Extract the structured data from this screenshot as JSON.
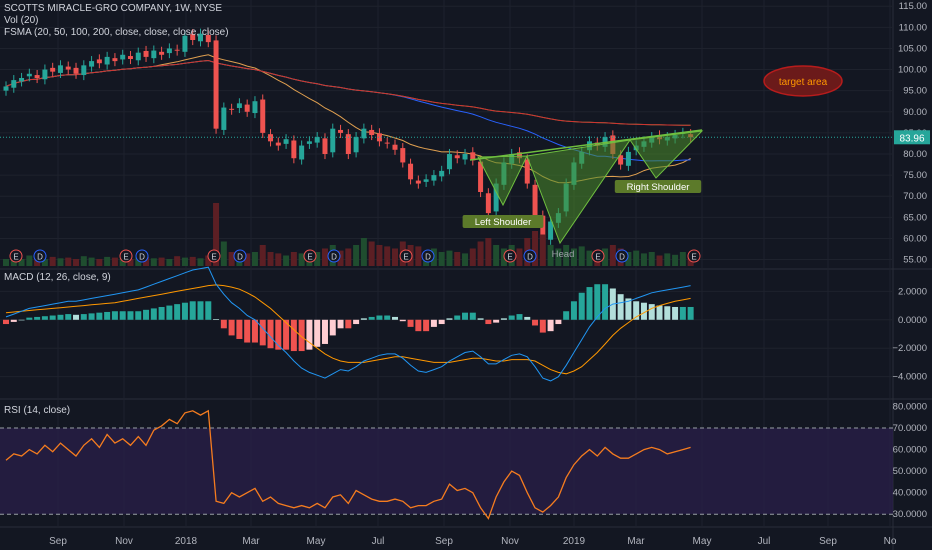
{
  "header": {
    "title": "SCOTTS MIRACLE-GRO COMPANY, 1W, NYSE",
    "vol_legend": "Vol (20)",
    "fsma_legend": "FSMA (20, 50, 100, 200, close, close, close, close)"
  },
  "macd_panel": {
    "legend": "MACD (12, 26, close, 9)"
  },
  "rsi_panel": {
    "legend": "RSI (14, close)"
  },
  "annotations": {
    "left_shoulder": "Left Shoulder",
    "head": "Head",
    "right_shoulder": "Right Shoulder",
    "target": "target area"
  },
  "price_badge": "83.96",
  "colors": {
    "background": "#131722",
    "up": "#26a69a",
    "down": "#ef5350",
    "pattern_fill": "#4a8c2a",
    "ma20": "#e0a050",
    "ma50": "#2962ff",
    "ma100": "#4caf50",
    "ma200": "#d32f2f",
    "rsi_line": "#f57c1f",
    "rsi_band": "#2a1f4a",
    "macd_line": "#2196f3",
    "signal_line": "#ff9800",
    "target_fill": "#6b1a1a",
    "target_text": "#ff9800",
    "price_badge": "#26a69a"
  },
  "chart_data": [
    {
      "type": "candlestick",
      "panel": "price",
      "title": "SCOTTS MIRACLE-GRO COMPANY, 1W, NYSE",
      "x_tick_labels": [
        "Sep",
        "Nov",
        "2018",
        "Mar",
        "May",
        "Jul",
        "Sep",
        "Nov",
        "2019",
        "Mar",
        "May",
        "Jul",
        "Sep",
        "No"
      ],
      "y_ticks": [
        55,
        60,
        65,
        70,
        75,
        80,
        85,
        90,
        95,
        100,
        105,
        110,
        115
      ],
      "y_tick_labels": [
        "55.00",
        "60.00",
        "65.00",
        "70.00",
        "75.00",
        "80.00",
        "85.00",
        "90.00",
        "95.00",
        "100.00",
        "105.00",
        "110.00",
        "115.00"
      ],
      "ylim": [
        53,
        116
      ],
      "weeks": 89,
      "closes": [
        96,
        97.5,
        98,
        99,
        98,
        100,
        99.5,
        101,
        100,
        99,
        101,
        102,
        101.5,
        103,
        102,
        103.5,
        102.5,
        104,
        103,
        104.5,
        103.5,
        105,
        104.5,
        108,
        107,
        108.5,
        106.5,
        86,
        91,
        90.5,
        92,
        90,
        92.5,
        85,
        83,
        82,
        83.5,
        79,
        82,
        83,
        84,
        80,
        86,
        85,
        80,
        84,
        86,
        84.5,
        83,
        82.5,
        81,
        78,
        74,
        73,
        74,
        75,
        76,
        80,
        79,
        80,
        78.5,
        71,
        66,
        73,
        78,
        80,
        79,
        73,
        65,
        60,
        64,
        66,
        73,
        78,
        80.5,
        83,
        82,
        84,
        80,
        77.5,
        80.5,
        82,
        83,
        84,
        83.5,
        84,
        84.5,
        85,
        83.96
      ],
      "last_price": 83.96,
      "moving_averages": [
        {
          "period": 20,
          "color": "#e0a050"
        },
        {
          "period": 50,
          "color": "#2962ff"
        },
        {
          "period": 100,
          "color": "#4caf50"
        },
        {
          "period": 200,
          "color": "#d32f2f"
        }
      ],
      "earnings_marker": "E",
      "dividend_marker": "D",
      "annotations": [
        "Left Shoulder",
        "Head",
        "Right Shoulder",
        "target area"
      ]
    },
    {
      "type": "bar",
      "panel": "volume",
      "title": "Vol (20)",
      "values": [
        0.1,
        0.12,
        0.1,
        0.15,
        0.12,
        0.1,
        0.13,
        0.11,
        0.12,
        0.1,
        0.14,
        0.12,
        0.1,
        0.13,
        0.12,
        0.11,
        0.1,
        0.12,
        0.13,
        0.11,
        0.12,
        0.1,
        0.14,
        0.12,
        0.13,
        0.11,
        0.15,
        0.9,
        0.35,
        0.2,
        0.15,
        0.18,
        0.2,
        0.3,
        0.2,
        0.18,
        0.15,
        0.2,
        0.18,
        0.16,
        0.2,
        0.25,
        0.3,
        0.22,
        0.25,
        0.3,
        0.4,
        0.35,
        0.3,
        0.28,
        0.25,
        0.35,
        0.3,
        0.28,
        0.2,
        0.25,
        0.2,
        0.22,
        0.2,
        0.18,
        0.25,
        0.35,
        0.4,
        0.3,
        0.25,
        0.3,
        0.25,
        0.4,
        0.5,
        0.45,
        0.3,
        0.25,
        0.3,
        0.25,
        0.28,
        0.22,
        0.2,
        0.25,
        0.3,
        0.25,
        0.2,
        0.22,
        0.18,
        0.2,
        0.15,
        0.18,
        0.16,
        0.2,
        0.15
      ]
    },
    {
      "type": "line",
      "panel": "macd",
      "title": "MACD (12, 26, close, 9)",
      "y_ticks": [
        -4,
        -2,
        0,
        2
      ],
      "y_tick_labels": [
        "−4.0000",
        "−2.0000",
        "0.0000",
        "2.0000"
      ],
      "ylim": [
        -5.5,
        3.5
      ],
      "series": [
        {
          "name": "MACD",
          "values": [
            0.2,
            0.4,
            0.6,
            0.8,
            0.9,
            1.0,
            1.1,
            1.2,
            1.3,
            1.3,
            1.4,
            1.5,
            1.6,
            1.7,
            1.8,
            1.9,
            2.0,
            2.1,
            2.3,
            2.5,
            2.7,
            2.9,
            3.1,
            3.3,
            3.5,
            3.6,
            3.7,
            2.5,
            1.8,
            1.2,
            0.8,
            0.3,
            0.0,
            -0.6,
            -1.2,
            -1.8,
            -2.3,
            -2.9,
            -3.4,
            -3.7,
            -3.9,
            -4.1,
            -3.8,
            -3.5,
            -3.6,
            -3.3,
            -2.9,
            -2.7,
            -2.5,
            -2.4,
            -2.4,
            -2.7,
            -3.2,
            -3.6,
            -3.7,
            -3.5,
            -3.3,
            -2.9,
            -2.6,
            -2.3,
            -2.2,
            -2.6,
            -3.1,
            -3.1,
            -2.8,
            -2.5,
            -2.4,
            -2.6,
            -3.3,
            -4.1,
            -4.3,
            -4.0,
            -3.2,
            -2.3,
            -1.4,
            -0.5,
            0.2,
            0.8,
            1.1,
            1.2,
            1.3,
            1.5,
            1.7,
            1.9,
            2.0,
            2.1,
            2.2,
            2.3,
            2.4
          ]
        },
        {
          "name": "Signal",
          "values": [
            0.5,
            0.55,
            0.6,
            0.65,
            0.7,
            0.75,
            0.8,
            0.85,
            0.9,
            0.95,
            1.0,
            1.05,
            1.1,
            1.15,
            1.2,
            1.3,
            1.4,
            1.5,
            1.6,
            1.7,
            1.8,
            1.9,
            2.0,
            2.1,
            2.2,
            2.3,
            2.4,
            2.45,
            2.4,
            2.3,
            2.15,
            1.9,
            1.6,
            1.2,
            0.8,
            0.3,
            -0.2,
            -0.7,
            -1.2,
            -1.6,
            -2.0,
            -2.4,
            -2.7,
            -2.9,
            -3.0,
            -3.0,
            -3.0,
            -2.9,
            -2.8,
            -2.7,
            -2.6,
            -2.6,
            -2.7,
            -2.8,
            -2.9,
            -3.0,
            -3.0,
            -3.0,
            -2.9,
            -2.8,
            -2.7,
            -2.7,
            -2.8,
            -2.9,
            -2.9,
            -2.8,
            -2.8,
            -2.8,
            -2.9,
            -3.2,
            -3.5,
            -3.7,
            -3.8,
            -3.6,
            -3.3,
            -2.8,
            -2.3,
            -1.7,
            -1.1,
            -0.6,
            -0.2,
            0.2,
            0.5,
            0.8,
            1.0,
            1.15,
            1.3,
            1.4,
            1.5
          ]
        }
      ],
      "histogram": [
        -0.3,
        -0.15,
        0.0,
        0.15,
        0.2,
        0.25,
        0.3,
        0.35,
        0.4,
        0.35,
        0.4,
        0.45,
        0.5,
        0.55,
        0.6,
        0.6,
        0.6,
        0.6,
        0.7,
        0.8,
        0.9,
        1.0,
        1.1,
        1.2,
        1.3,
        1.3,
        1.3,
        0.05,
        -0.6,
        -1.1,
        -1.35,
        -1.6,
        -1.6,
        -1.8,
        -2.0,
        -2.1,
        -2.1,
        -2.2,
        -2.2,
        -2.1,
        -1.9,
        -1.7,
        -1.1,
        -0.6,
        -0.6,
        -0.3,
        0.1,
        0.2,
        0.3,
        0.3,
        0.2,
        -0.1,
        -0.5,
        -0.8,
        -0.8,
        -0.5,
        -0.3,
        0.1,
        0.3,
        0.5,
        0.5,
        0.1,
        -0.3,
        -0.2,
        0.1,
        0.3,
        0.4,
        0.2,
        -0.4,
        -0.9,
        -0.8,
        -0.3,
        0.6,
        1.3,
        1.9,
        2.3,
        2.5,
        2.5,
        2.2,
        1.8,
        1.5,
        1.3,
        1.2,
        1.1,
        1.0,
        0.95,
        0.9,
        0.9,
        0.9
      ]
    },
    {
      "type": "line",
      "panel": "rsi",
      "title": "RSI (14, close)",
      "y_ticks": [
        30,
        40,
        50,
        60,
        70,
        80
      ],
      "y_tick_labels": [
        "30.0000",
        "40.0000",
        "50.0000",
        "60.0000",
        "70.0000",
        "80.0000"
      ],
      "ylim": [
        25,
        83
      ],
      "band": [
        30,
        70
      ],
      "series": [
        {
          "name": "RSI",
          "values": [
            55,
            58,
            57,
            60,
            58,
            62,
            59,
            63,
            60,
            57,
            62,
            65,
            61,
            67,
            63,
            65,
            62,
            66,
            62,
            69,
            71,
            74,
            72,
            77,
            78,
            76,
            78,
            36,
            35,
            40,
            38,
            40,
            42,
            36,
            38,
            35,
            34,
            33,
            34,
            33,
            35,
            33,
            38,
            39,
            35,
            41,
            39,
            37,
            36,
            36,
            37,
            36,
            33,
            34,
            34,
            36,
            37,
            44,
            41,
            42,
            40,
            33,
            28,
            38,
            45,
            50,
            48,
            40,
            33,
            31,
            34,
            38,
            47,
            53,
            57,
            60,
            57,
            61,
            58,
            56,
            56,
            58,
            60,
            61,
            60,
            58,
            59,
            60,
            61
          ]
        }
      ]
    }
  ]
}
